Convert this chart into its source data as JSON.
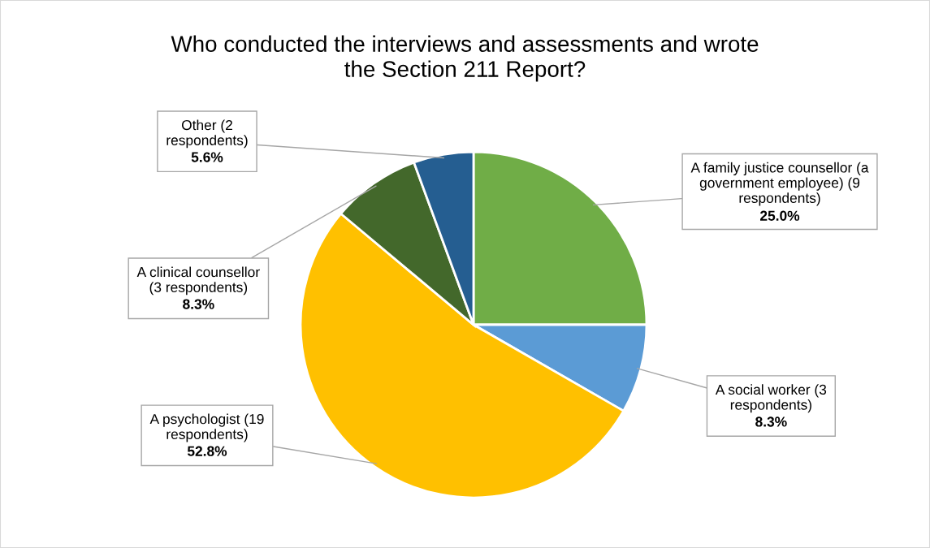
{
  "chart_data": {
    "type": "pie",
    "title": "Who conducted the interviews and assessments and wrote the Section 211 Report?",
    "categories": [
      "A family justice counsellor (a government employee) (9 respondents)",
      "A social worker (3 respondents)",
      "A psychologist (19 respondents)",
      "A clinical counsellor (3 respondents)",
      "Other (2 respondents)"
    ],
    "values": [
      25.0,
      8.3,
      52.8,
      8.3,
      5.6
    ],
    "colors": [
      "#70ad47",
      "#5b9bd5",
      "#ffc000",
      "#43682b",
      "#255e91"
    ],
    "value_labels": [
      "25.0%",
      "8.3%",
      "52.8%",
      "8.3%",
      "5.6%"
    ]
  }
}
